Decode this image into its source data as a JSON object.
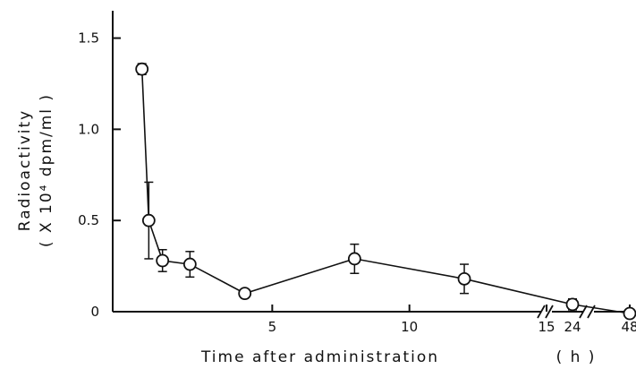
{
  "chart_data": {
    "type": "line",
    "xlabel": "Time after administration",
    "xunit": "( h )",
    "ylabel": "Radioactivity",
    "ylabel2": "( X 10⁴ dpm/ml )",
    "ylim": [
      0,
      1.65
    ],
    "yticks": [
      {
        "value": 0,
        "label": "0"
      },
      {
        "value": 0.5,
        "label": "0.5"
      },
      {
        "value": 1.0,
        "label": "1.0"
      },
      {
        "value": 1.5,
        "label": "1.5"
      }
    ],
    "xticks": [
      {
        "value": 5,
        "label": "5"
      },
      {
        "value": 10,
        "label": "10"
      },
      {
        "value": 15,
        "label": "15"
      },
      {
        "value": 24,
        "label": "24"
      },
      {
        "value": 48,
        "label": "48"
      }
    ],
    "grid": false,
    "axis_breaks": [
      16,
      36
    ],
    "points": [
      {
        "x": 0.25,
        "y": 1.33,
        "err": 0.03
      },
      {
        "x": 0.5,
        "y": 0.5,
        "err": 0.21
      },
      {
        "x": 1,
        "y": 0.28,
        "err": 0.06
      },
      {
        "x": 2,
        "y": 0.26,
        "err": 0.07
      },
      {
        "x": 4,
        "y": 0.1,
        "err": 0.02
      },
      {
        "x": 8,
        "y": 0.29,
        "err": 0.08
      },
      {
        "x": 12,
        "y": 0.18,
        "err": 0.08
      },
      {
        "x": 24,
        "y": 0.04,
        "err": 0.03
      },
      {
        "x": 48,
        "y": -0.01,
        "err": 0.02
      }
    ]
  }
}
